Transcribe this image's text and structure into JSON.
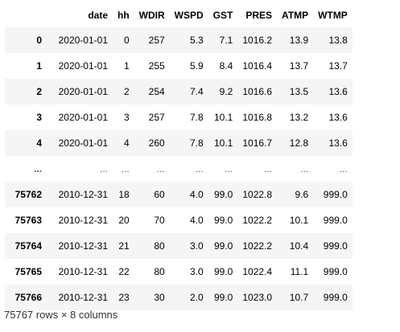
{
  "table": {
    "columns": [
      "",
      "date",
      "hh",
      "WDIR",
      "WSPD",
      "GST",
      "PRES",
      "ATMP",
      "WTMP"
    ],
    "rows": [
      [
        "0",
        "2020-01-01",
        "0",
        "257",
        "5.3",
        "7.1",
        "1016.2",
        "13.9",
        "13.8"
      ],
      [
        "1",
        "2020-01-01",
        "1",
        "255",
        "5.9",
        "8.4",
        "1016.4",
        "13.7",
        "13.7"
      ],
      [
        "2",
        "2020-01-01",
        "2",
        "254",
        "7.4",
        "9.2",
        "1016.6",
        "13.5",
        "13.6"
      ],
      [
        "3",
        "2020-01-01",
        "3",
        "257",
        "7.8",
        "10.1",
        "1016.8",
        "13.2",
        "13.6"
      ],
      [
        "4",
        "2020-01-01",
        "4",
        "260",
        "7.8",
        "10.1",
        "1016.7",
        "12.8",
        "13.6"
      ],
      [
        "...",
        "...",
        "...",
        "...",
        "...",
        "...",
        "...",
        "...",
        "..."
      ],
      [
        "75762",
        "2010-12-31",
        "18",
        "60",
        "4.0",
        "99.0",
        "1022.8",
        "9.6",
        "999.0"
      ],
      [
        "75763",
        "2010-12-31",
        "20",
        "70",
        "4.0",
        "99.0",
        "1022.2",
        "10.1",
        "999.0"
      ],
      [
        "75764",
        "2010-12-31",
        "21",
        "80",
        "3.0",
        "99.0",
        "1022.2",
        "10.4",
        "999.0"
      ],
      [
        "75765",
        "2010-12-31",
        "22",
        "80",
        "3.0",
        "99.0",
        "1022.4",
        "11.1",
        "999.0"
      ],
      [
        "75766",
        "2010-12-31",
        "23",
        "30",
        "2.0",
        "99.0",
        "1023.0",
        "10.7",
        "999.0"
      ]
    ]
  },
  "footer": {
    "summary": "75767 rows × 8 columns"
  }
}
